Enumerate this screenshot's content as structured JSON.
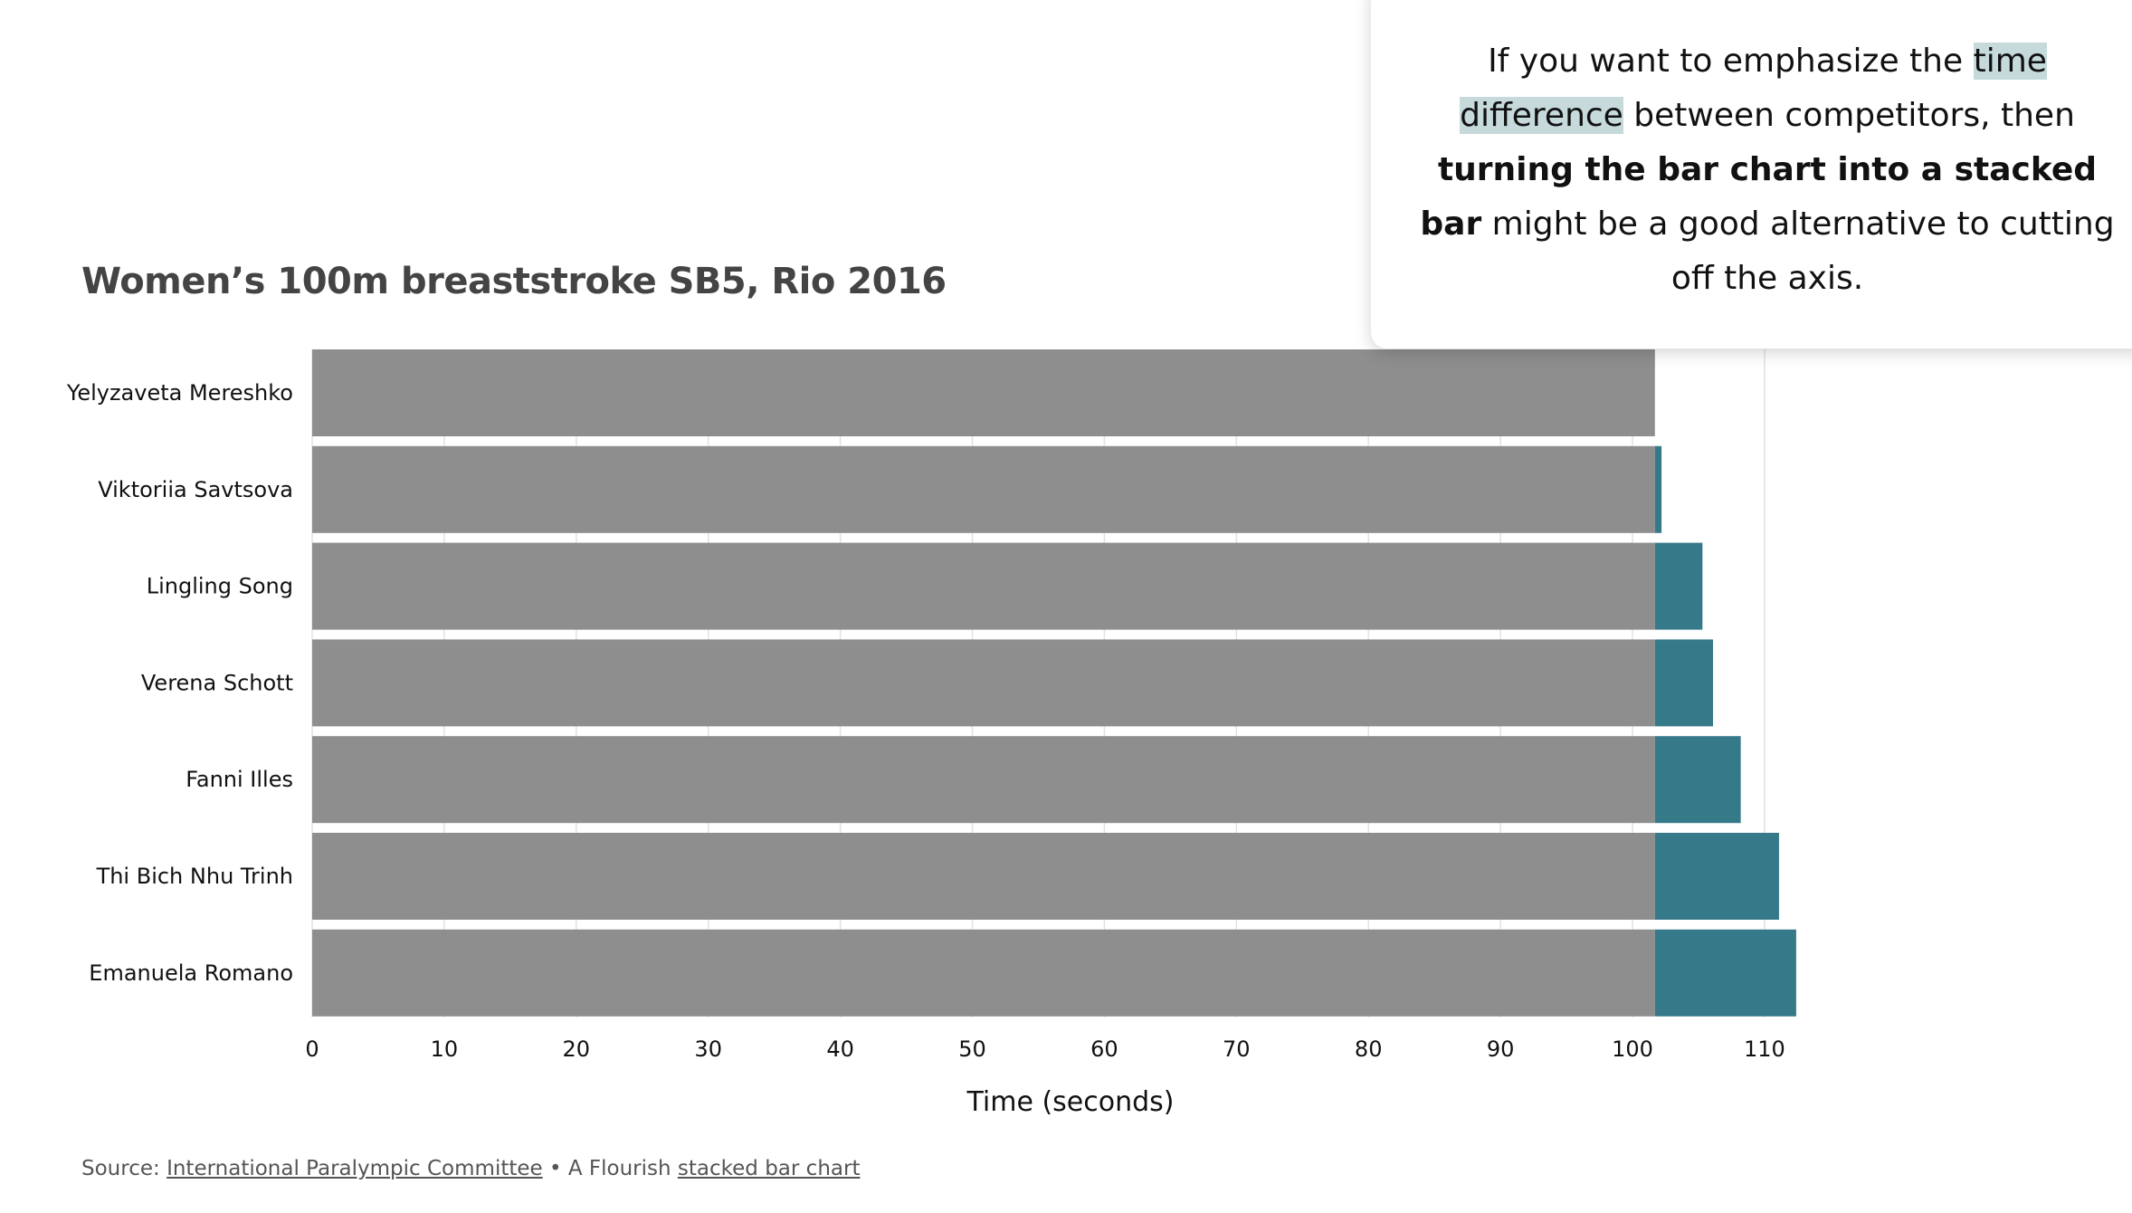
{
  "callout": {
    "text_1": "If you want to emphasize the ",
    "highlight": "time difference",
    "text_2": " between competitors, then ",
    "bold": "turning the bar chart into a stacked bar",
    "text_3": " might be a good alternative to cutting off the axis."
  },
  "footer": {
    "source_prefix": "Source: ",
    "source_link": "International Paralympic Committee",
    "middle": " • A Flourish ",
    "chart_link": "stacked bar chart"
  },
  "colors": {
    "base": "#8e8e8e",
    "difference": "#367a8a",
    "grid": "#e2e2e2"
  },
  "chart_data": {
    "type": "bar",
    "orientation": "horizontal",
    "stacked": true,
    "title": "Women’s 100m breaststroke SB5, Rio 2016",
    "xlabel": "Time (seconds)",
    "ylabel": "",
    "xlim": [
      0,
      110
    ],
    "x_ticks": [
      0,
      10,
      20,
      30,
      40,
      50,
      60,
      70,
      80,
      90,
      100,
      110
    ],
    "grid": true,
    "categories": [
      "Yelyzaveta Mereshko",
      "Viktoriia Savtsova",
      "Lingling Song",
      "Verena Schott",
      "Fanni Illes",
      "Thi Bich Nhu Trinh",
      "Emanuela Romano"
    ],
    "series": [
      {
        "values": [
          101.7,
          101.7,
          101.7,
          101.7,
          101.7,
          101.7,
          101.7
        ]
      },
      {
        "values": [
          0,
          0.5,
          3.6,
          4.4,
          6.5,
          9.4,
          10.7
        ]
      }
    ]
  }
}
